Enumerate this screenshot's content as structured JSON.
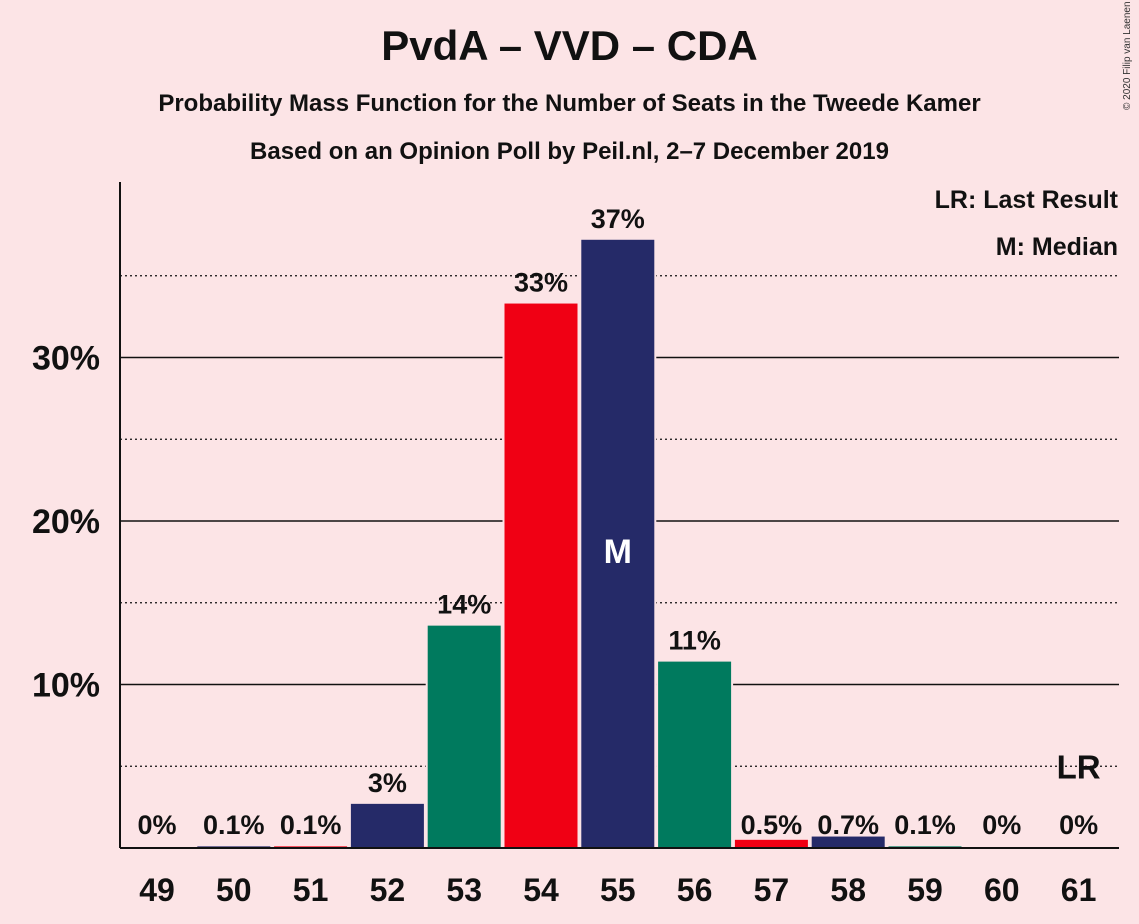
{
  "title": "PvdA – VVD – CDA",
  "subtitle": "Probability Mass Function for the Number of Seats in the Tweede Kamer",
  "caption": "Based on an Opinion Poll by Peil.nl, 2–7 December 2019",
  "copyright": "© 2020 Filip van Laenen",
  "legend": {
    "last_result": "LR: Last Result",
    "median": "M: Median"
  },
  "colors": {
    "background": "#fce4e6",
    "PvdA": "#f00014",
    "VVD": "#252a68",
    "CDA": "#007a5e"
  },
  "chart_data": {
    "type": "bar",
    "categories": [
      49,
      50,
      51,
      52,
      53,
      54,
      55,
      56,
      57,
      58,
      59,
      60,
      61
    ],
    "values": [
      0,
      0.1,
      0.1,
      2.7,
      13.6,
      33.3,
      37.2,
      11.4,
      0.5,
      0.7,
      0.1,
      0,
      0
    ],
    "value_labels": [
      "0%",
      "0.1%",
      "0.1%",
      "3%",
      "14%",
      "33%",
      "37%",
      "11%",
      "0.5%",
      "0.7%",
      "0.1%",
      "0%",
      "0%"
    ],
    "bar_colors": [
      "#007a5e",
      "#252a68",
      "#f00014",
      "#252a68",
      "#007a5e",
      "#f00014",
      "#252a68",
      "#007a5e",
      "#f00014",
      "#252a68",
      "#007a5e",
      "#252a68",
      "#f00014"
    ],
    "y_ticks": [
      10,
      20,
      30
    ],
    "y_tick_labels": [
      "10%",
      "20%",
      "30%"
    ],
    "ylim": [
      0,
      40
    ],
    "dotted_gridlines": [
      5,
      15,
      25,
      35
    ],
    "solid_gridlines": [
      10,
      20,
      30
    ],
    "median_category": 55,
    "median_label": "M",
    "last_result_category": 61,
    "last_result_label": "LR"
  }
}
